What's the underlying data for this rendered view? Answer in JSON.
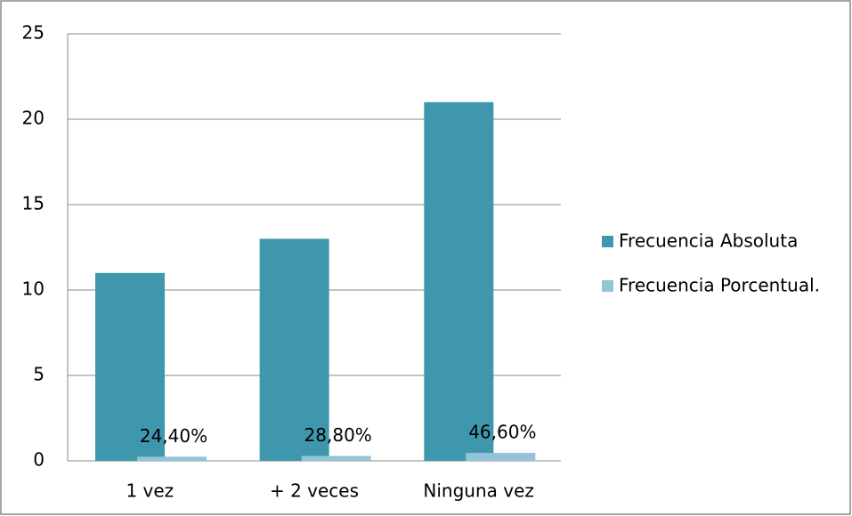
{
  "chart_data": {
    "type": "bar",
    "categories": [
      "1 vez",
      "+ 2 veces",
      "Ninguna vez"
    ],
    "series": [
      {
        "name": "Frecuencia Absoluta",
        "color": "#3f97ae",
        "values": [
          11,
          13,
          21
        ]
      },
      {
        "name": "Frecuencia Porcentual.",
        "color": "#93c4d8",
        "values": [
          0.244,
          0.288,
          0.466
        ],
        "value_labels": [
          "24,40%",
          "28,80%",
          "46,60%"
        ]
      }
    ],
    "ylim": [
      0,
      25
    ],
    "yticks": [
      0,
      5,
      10,
      15,
      20,
      25
    ],
    "grid": true,
    "legend": "right"
  }
}
